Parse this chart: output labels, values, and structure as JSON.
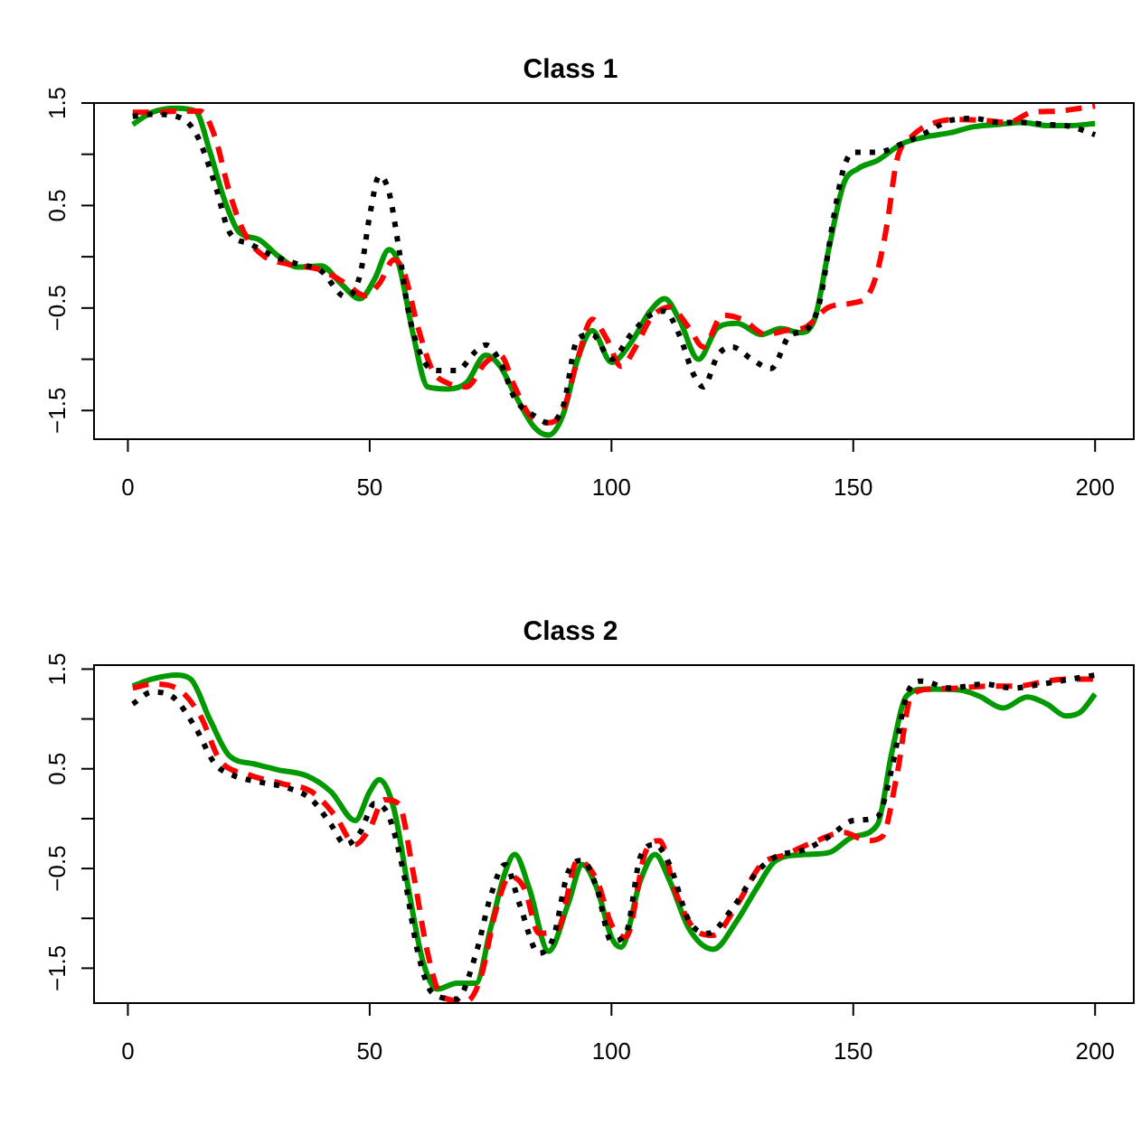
{
  "chart_data": [
    {
      "type": "line",
      "title": "Class 1",
      "grid": false,
      "legend": false,
      "marker": "none",
      "xlim": [
        -7,
        208
      ],
      "ylim": [
        -1.78,
        1.5
      ],
      "xticks": [
        0,
        50,
        100,
        150,
        200
      ],
      "yticks": [
        {
          "value": -1.5,
          "label": "−1.5"
        },
        {
          "value": -1,
          "label": null
        },
        {
          "value": -0.5,
          "label": "−0.5"
        },
        {
          "value": 0,
          "label": null
        },
        {
          "value": 0.5,
          "label": "0.5"
        },
        {
          "value": 1,
          "label": null
        },
        {
          "value": 1.5,
          "label": "1.5"
        }
      ],
      "series": [
        {
          "color": "#000000",
          "line_style": "dotted",
          "x": [
            1,
            5,
            10,
            14,
            18,
            21,
            25,
            30,
            35,
            40,
            45,
            48,
            50,
            52,
            54,
            56,
            58,
            61,
            64,
            68,
            72,
            74,
            77,
            80,
            84,
            87,
            90,
            93,
            96,
            100,
            104,
            108,
            111,
            114,
            117,
            119,
            122,
            125,
            129,
            133,
            137,
            140,
            143,
            146,
            148,
            150,
            155,
            160,
            165,
            170,
            175,
            180,
            185,
            190,
            195,
            200
          ],
          "values": [
            1.37,
            1.39,
            1.37,
            1.21,
            0.71,
            0.24,
            0.13,
            0.01,
            -0.07,
            -0.14,
            -0.39,
            -0.18,
            0.4,
            0.79,
            0.63,
            0.09,
            -0.53,
            -1.0,
            -1.11,
            -1.11,
            -0.92,
            -0.86,
            -1.03,
            -1.38,
            -1.55,
            -1.62,
            -1.46,
            -0.8,
            -0.76,
            -1.0,
            -0.76,
            -0.57,
            -0.53,
            -0.76,
            -1.15,
            -1.27,
            -0.96,
            -0.88,
            -1.0,
            -1.09,
            -0.76,
            -0.72,
            -0.45,
            0.4,
            0.86,
            1.02,
            1.02,
            1.1,
            1.21,
            1.33,
            1.35,
            1.31,
            1.31,
            1.29,
            1.27,
            1.19
          ]
        },
        {
          "color": "#ff0000",
          "line_style": "dashed",
          "x": [
            1,
            5,
            10,
            15,
            18,
            21,
            24,
            28,
            33,
            40,
            45,
            49,
            52,
            55,
            57,
            60,
            63,
            66,
            70,
            74,
            77,
            80,
            83,
            87,
            90,
            93,
            96,
            99,
            102,
            105,
            108,
            112,
            116,
            119,
            123,
            127,
            132,
            136,
            140,
            145,
            150,
            153,
            155,
            157,
            159,
            162,
            167,
            172,
            177,
            182,
            187,
            192,
            197,
            200
          ],
          "values": [
            1.41,
            1.41,
            1.42,
            1.42,
            1.17,
            0.63,
            0.24,
            0.01,
            -0.07,
            -0.13,
            -0.26,
            -0.38,
            -0.26,
            -0.03,
            -0.14,
            -0.69,
            -1.11,
            -1.23,
            -1.27,
            -1.03,
            -0.96,
            -1.27,
            -1.54,
            -1.62,
            -1.5,
            -1.0,
            -0.61,
            -0.8,
            -1.07,
            -0.88,
            -0.61,
            -0.49,
            -0.69,
            -0.88,
            -0.57,
            -0.61,
            -0.76,
            -0.72,
            -0.69,
            -0.49,
            -0.45,
            -0.38,
            -0.14,
            0.32,
            0.94,
            1.17,
            1.31,
            1.34,
            1.33,
            1.31,
            1.41,
            1.42,
            1.45,
            1.47
          ]
        },
        {
          "color": "#009900",
          "line_style": "solid",
          "x": [
            1,
            5,
            10,
            14,
            17,
            20,
            23,
            27,
            31,
            35,
            40,
            44,
            48,
            51,
            54,
            56,
            59,
            62,
            66,
            70,
            74,
            77,
            80,
            84,
            87,
            90,
            93,
            96,
            100,
            104,
            108,
            111,
            114,
            118,
            122,
            126,
            131,
            135,
            139,
            142,
            145,
            148,
            151,
            155,
            160,
            165,
            170,
            175,
            180,
            185,
            190,
            195,
            200
          ],
          "values": [
            1.29,
            1.41,
            1.45,
            1.42,
            1.02,
            0.55,
            0.24,
            0.17,
            0.01,
            -0.1,
            -0.09,
            -0.26,
            -0.41,
            -0.22,
            0.07,
            -0.07,
            -0.76,
            -1.27,
            -1.29,
            -1.23,
            -0.96,
            -1.07,
            -1.34,
            -1.66,
            -1.74,
            -1.54,
            -1.0,
            -0.72,
            -1.03,
            -0.84,
            -0.53,
            -0.41,
            -0.61,
            -1.0,
            -0.69,
            -0.65,
            -0.76,
            -0.7,
            -0.74,
            -0.61,
            0.09,
            0.71,
            0.86,
            0.94,
            1.1,
            1.17,
            1.21,
            1.27,
            1.29,
            1.31,
            1.28,
            1.28,
            1.3
          ]
        }
      ]
    },
    {
      "type": "line",
      "title": "Class 2",
      "grid": false,
      "legend": false,
      "marker": "none",
      "xlim": [
        -7,
        208
      ],
      "ylim": [
        -1.85,
        1.54
      ],
      "xticks": [
        0,
        50,
        100,
        150,
        200
      ],
      "yticks": [
        {
          "value": -1.5,
          "label": "−1.5"
        },
        {
          "value": -1,
          "label": null
        },
        {
          "value": -0.5,
          "label": "−0.5"
        },
        {
          "value": 0,
          "label": null
        },
        {
          "value": 0.5,
          "label": "0.5"
        },
        {
          "value": 1,
          "label": null
        },
        {
          "value": 1.5,
          "label": "1.5"
        }
      ],
      "series": [
        {
          "color": "#000000",
          "line_style": "dotted",
          "x": [
            1,
            5,
            9,
            14,
            18,
            22,
            28,
            33,
            38,
            42,
            45,
            48,
            51,
            54,
            57,
            60,
            63,
            68,
            72,
            75,
            78,
            81,
            85,
            88,
            91,
            94,
            97,
            100,
            103,
            106,
            109,
            112,
            116,
            120,
            125,
            130,
            134,
            140,
            145,
            150,
            155,
            158,
            161,
            164,
            170,
            177,
            183,
            189,
            195,
            200
          ],
          "values": [
            1.15,
            1.27,
            1.23,
            0.91,
            0.55,
            0.43,
            0.36,
            0.31,
            0.19,
            -0.06,
            -0.26,
            -0.14,
            0.15,
            0.02,
            -0.54,
            -1.35,
            -1.75,
            -1.81,
            -1.35,
            -0.78,
            -0.46,
            -0.86,
            -1.35,
            -1.19,
            -0.54,
            -0.42,
            -0.7,
            -1.23,
            -1.15,
            -0.38,
            -0.26,
            -0.46,
            -1.02,
            -1.15,
            -0.9,
            -0.54,
            -0.38,
            -0.31,
            -0.18,
            -0.02,
            0.02,
            0.51,
            1.23,
            1.38,
            1.31,
            1.35,
            1.31,
            1.35,
            1.4,
            1.44
          ]
        },
        {
          "color": "#ff0000",
          "line_style": "dashed",
          "x": [
            1,
            5,
            10,
            15,
            19,
            25,
            32,
            38,
            43,
            47,
            50,
            53,
            56,
            59,
            62,
            65,
            70,
            73,
            76,
            79,
            82,
            85,
            89,
            93,
            97,
            100,
            103,
            107,
            110,
            113,
            117,
            121,
            126,
            131,
            136,
            142,
            148,
            153,
            156,
            159,
            162,
            166,
            172,
            178,
            184,
            190,
            195,
            200
          ],
          "values": [
            1.31,
            1.35,
            1.31,
            1.03,
            0.59,
            0.44,
            0.35,
            0.27,
            0.02,
            -0.26,
            -0.1,
            0.19,
            0.15,
            -0.54,
            -1.35,
            -1.79,
            -1.83,
            -1.59,
            -0.94,
            -0.58,
            -0.7,
            -1.15,
            -1.1,
            -0.42,
            -0.62,
            -1.06,
            -1.19,
            -0.34,
            -0.22,
            -0.7,
            -1.1,
            -1.17,
            -0.86,
            -0.46,
            -0.36,
            -0.23,
            -0.14,
            -0.22,
            -0.18,
            0.43,
            1.23,
            1.3,
            1.31,
            1.33,
            1.33,
            1.38,
            1.4,
            1.4
          ]
        },
        {
          "color": "#009900",
          "line_style": "solid",
          "x": [
            1,
            5,
            10,
            13,
            17,
            21,
            26,
            31,
            37,
            42,
            47,
            50,
            52,
            55,
            58,
            61,
            64,
            68,
            72,
            75,
            78,
            80,
            83,
            87,
            91,
            94,
            97,
            100,
            102,
            106,
            109,
            112,
            116,
            121,
            126,
            130,
            134,
            140,
            145,
            150,
            155,
            158,
            161,
            165,
            172,
            176,
            181,
            186,
            190,
            194,
            197,
            200
          ],
          "values": [
            1.33,
            1.4,
            1.44,
            1.4,
            0.99,
            0.63,
            0.55,
            0.49,
            0.43,
            0.27,
            -0.02,
            0.27,
            0.39,
            0.1,
            -0.7,
            -1.43,
            -1.71,
            -1.65,
            -1.65,
            -1.1,
            -0.54,
            -0.36,
            -0.7,
            -1.33,
            -0.86,
            -0.46,
            -0.7,
            -1.19,
            -1.29,
            -0.62,
            -0.36,
            -0.62,
            -1.1,
            -1.31,
            -1.02,
            -0.7,
            -0.42,
            -0.36,
            -0.34,
            -0.18,
            -0.06,
            0.67,
            1.23,
            1.3,
            1.29,
            1.23,
            1.11,
            1.22,
            1.15,
            1.03,
            1.07,
            1.25
          ]
        }
      ]
    }
  ]
}
